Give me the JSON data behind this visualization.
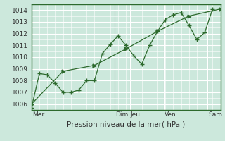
{
  "xlabel": "Pression niveau de la mer( hPa )",
  "bg_color": "#cce8dc",
  "grid_color": "#ffffff",
  "line_color": "#2d6a2d",
  "ylim": [
    1005.5,
    1014.5
  ],
  "yticks": [
    1006,
    1007,
    1008,
    1009,
    1010,
    1011,
    1012,
    1013,
    1014
  ],
  "day_labels": [
    "Mer",
    "Dim",
    "Jeu",
    "Ven",
    "Sam"
  ],
  "day_positions": [
    0.0,
    0.44,
    0.52,
    0.7,
    0.93
  ],
  "series1_x": [
    0.0,
    0.042,
    0.083,
    0.125,
    0.167,
    0.208,
    0.25,
    0.292,
    0.333,
    0.375,
    0.417,
    0.458,
    0.5,
    0.542,
    0.583,
    0.625,
    0.667,
    0.708,
    0.75,
    0.792,
    0.833,
    0.875,
    0.917,
    0.958
  ],
  "series1_y": [
    1005.7,
    1008.6,
    1008.5,
    1007.8,
    1007.0,
    1007.0,
    1007.2,
    1008.0,
    1008.0,
    1010.3,
    1011.1,
    1011.8,
    1011.0,
    1010.1,
    1009.4,
    1011.0,
    1012.2,
    1013.2,
    1013.6,
    1013.8,
    1012.7,
    1011.5,
    1012.1,
    1014.1
  ],
  "series2_x": [
    0.0,
    0.167,
    0.333,
    0.5,
    0.667,
    0.833,
    1.0
  ],
  "series2_y": [
    1006.0,
    1008.8,
    1009.3,
    1010.7,
    1012.2,
    1013.5,
    1014.1
  ],
  "xmin": 0.0,
  "xmax": 1.0,
  "minor_grid_nx": 24,
  "minor_grid_ny": 9
}
